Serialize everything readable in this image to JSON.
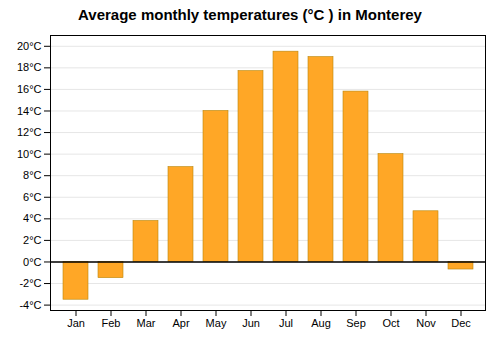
{
  "chart_data": {
    "type": "bar",
    "title": "Average monthly temperatures (°C ) in Monterey",
    "categories": [
      "Jan",
      "Feb",
      "Mar",
      "Apr",
      "May",
      "Jun",
      "Jul",
      "Aug",
      "Sep",
      "Oct",
      "Nov",
      "Dec"
    ],
    "values": [
      -3.5,
      -1.5,
      3.8,
      8.8,
      14.0,
      17.7,
      19.5,
      19.0,
      15.8,
      10.0,
      4.7,
      -0.7
    ],
    "color": "#FFA726",
    "ylim": [
      -4.5,
      21
    ],
    "yticks": [
      {
        "value": -4,
        "label": "-4°C"
      },
      {
        "value": -2,
        "label": "-2°C"
      },
      {
        "value": 0,
        "label": "0°C"
      },
      {
        "value": 2,
        "label": "2°C"
      },
      {
        "value": 4,
        "label": "4°C"
      },
      {
        "value": 6,
        "label": "6°C"
      },
      {
        "value": 8,
        "label": "8°C"
      },
      {
        "value": 10,
        "label": "10°C"
      },
      {
        "value": 12,
        "label": "12°C"
      },
      {
        "value": 14,
        "label": "14°C"
      },
      {
        "value": 16,
        "label": "16°C"
      },
      {
        "value": 18,
        "label": "18°C"
      },
      {
        "value": 20,
        "label": "20°C"
      }
    ],
    "grid": true
  }
}
